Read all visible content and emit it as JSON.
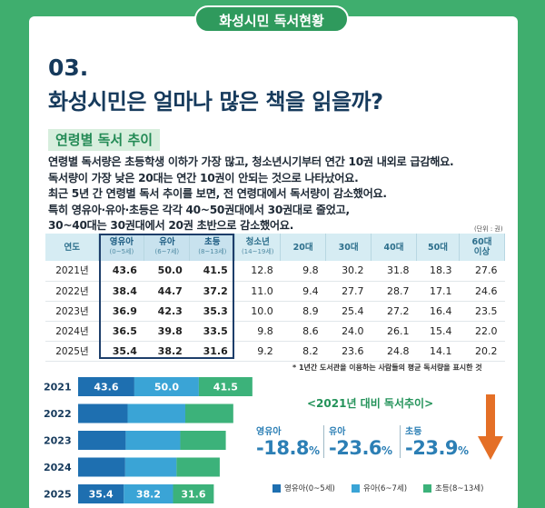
{
  "header": {
    "badge": "화성시민 독서현황"
  },
  "section": {
    "number": "03.",
    "title": "화성시민은 얼마나 많은 책을 읽을까?"
  },
  "subheading": "연령별 독서 추이",
  "description": [
    "연령별 독서량은 초등학생 이하가 가장 많고, 청소년시기부터 연간 10권 내외로 급감해요.",
    "독서량이 가장 낮은 20대는 연간 10권이 안되는 것으로 나타났어요.",
    "최근 5년 간 연령별 독서 추이를 보면, 전 연령대에서 독서량이 감소했어요.",
    "특히 영유아·유아·초등은 각각 40~50권대에서 30권대로 줄었고,",
    "30~40대는 30권대에서 20권 초반으로 감소했어요."
  ],
  "unit": "(단위 : 권)",
  "table": {
    "year_header": "연도",
    "columns": [
      {
        "label": "영유아",
        "sub": "(0~5세)"
      },
      {
        "label": "유아",
        "sub": "(6~7세)"
      },
      {
        "label": "초등",
        "sub": "(8~13세)"
      },
      {
        "label": "청소년",
        "sub": "(14~19세)"
      },
      {
        "label": "20대",
        "sub": ""
      },
      {
        "label": "30대",
        "sub": ""
      },
      {
        "label": "40대",
        "sub": ""
      },
      {
        "label": "50대",
        "sub": ""
      },
      {
        "label": "60대",
        "sub": "이상"
      }
    ],
    "rows": [
      {
        "year": "2021년",
        "values": [
          "43.6",
          "50.0",
          "41.5",
          "12.8",
          "9.8",
          "30.2",
          "31.8",
          "18.3",
          "27.6"
        ]
      },
      {
        "year": "2022년",
        "values": [
          "38.4",
          "44.7",
          "37.2",
          "11.0",
          "9.4",
          "27.7",
          "28.7",
          "17.1",
          "24.6"
        ]
      },
      {
        "year": "2023년",
        "values": [
          "36.9",
          "42.3",
          "35.3",
          "10.0",
          "8.9",
          "25.4",
          "27.2",
          "16.4",
          "23.5"
        ]
      },
      {
        "year": "2024년",
        "values": [
          "36.5",
          "39.8",
          "33.5",
          "9.8",
          "8.6",
          "24.0",
          "26.1",
          "15.4",
          "22.0"
        ]
      },
      {
        "year": "2025년",
        "values": [
          "35.4",
          "38.2",
          "31.6",
          "9.2",
          "8.2",
          "23.6",
          "24.8",
          "14.1",
          "20.2"
        ]
      }
    ]
  },
  "footnote": "* 1년간 도서관을 이용하는 사람들의 평균 독서량을 표시한 것",
  "comparison": {
    "title": "<2021년 대비 독서추이>",
    "items": [
      {
        "label": "영유아",
        "value": "-18.8",
        "unit": "%"
      },
      {
        "label": "유아",
        "value": "-23.6",
        "unit": "%"
      },
      {
        "label": "초등",
        "value": "-23.9",
        "unit": "%"
      }
    ]
  },
  "colors": {
    "infant": "#1e6fb0",
    "child": "#3aa4d6",
    "elementary": "#3cb27a",
    "arrow": "#e46f26"
  },
  "chart_data": {
    "type": "bar",
    "orientation": "horizontal",
    "stacked": true,
    "categories": [
      "2021",
      "2022",
      "2023",
      "2024",
      "2025"
    ],
    "series": [
      {
        "name": "영유아(0~5세)",
        "values": [
          43.6,
          38.4,
          36.9,
          36.5,
          35.4
        ]
      },
      {
        "name": "유아(6~7세)",
        "values": [
          50.0,
          44.7,
          42.3,
          39.8,
          38.2
        ]
      },
      {
        "name": "초등(8~13세)",
        "values": [
          41.5,
          37.2,
          35.3,
          33.5,
          31.6
        ]
      }
    ],
    "data_labels": {
      "2021": [
        "43.6",
        "50.0",
        "41.5"
      ],
      "2025": [
        "35.4",
        "38.2",
        "31.6"
      ]
    },
    "legend": "bottom",
    "grid": false
  }
}
